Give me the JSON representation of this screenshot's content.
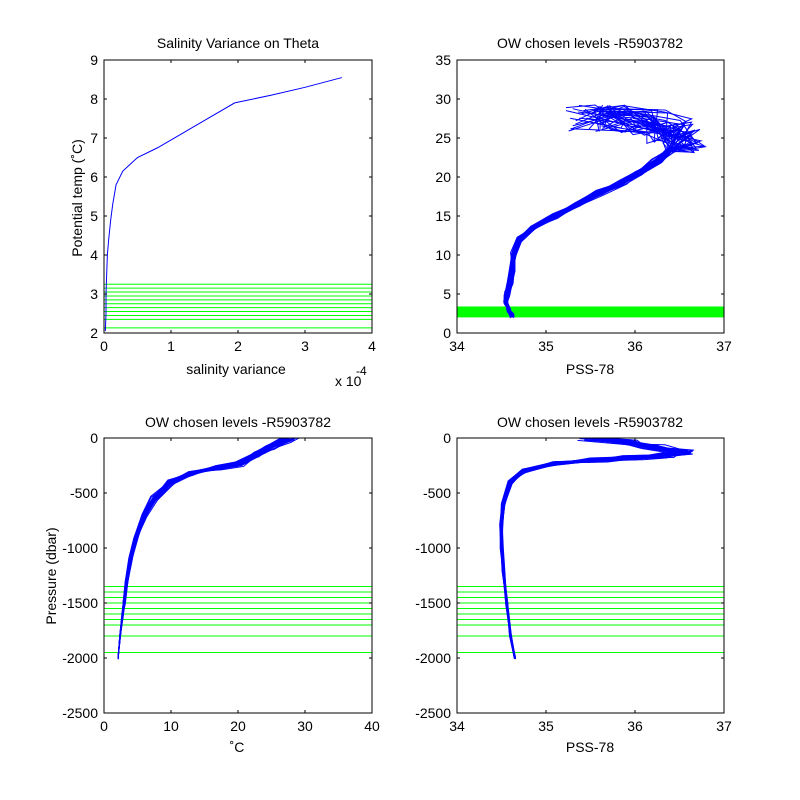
{
  "colors": {
    "background": "#ffffff",
    "axis": "#000000",
    "data_line": "#0000ff",
    "level_line": "#00ff00"
  },
  "chart_data": [
    {
      "id": "tl",
      "type": "line",
      "title": "Salinity Variance on Theta",
      "xlabel": "salinity variance",
      "ylabel": "Potential temp (˚C)",
      "xlim": [
        0,
        4
      ],
      "ylim": [
        2,
        9
      ],
      "xticks": [
        0,
        1,
        2,
        3,
        4
      ],
      "yticks": [
        2,
        3,
        4,
        5,
        6,
        7,
        8,
        9
      ],
      "x_exponent_label": "x 10",
      "x_exponent_power": "-4",
      "grid": false,
      "series": [
        {
          "points": [
            [
              0.02,
              2.05
            ],
            [
              0.03,
              2.5
            ],
            [
              0.03,
              3.0
            ],
            [
              0.04,
              3.5
            ],
            [
              0.05,
              4.0
            ],
            [
              0.07,
              4.4
            ],
            [
              0.1,
              4.9
            ],
            [
              0.13,
              5.3
            ],
            [
              0.18,
              5.8
            ],
            [
              0.28,
              6.15
            ],
            [
              0.5,
              6.5
            ],
            [
              0.8,
              6.75
            ],
            [
              1.2,
              7.15
            ],
            [
              1.5,
              7.45
            ],
            [
              1.95,
              7.9
            ],
            [
              2.5,
              8.1
            ],
            [
              3.0,
              8.3
            ],
            [
              3.55,
              8.55
            ]
          ]
        }
      ],
      "level_lines": [
        2.13,
        2.35,
        2.45,
        2.55,
        2.65,
        2.75,
        2.85,
        2.95,
        3.05,
        3.15,
        3.25
      ]
    },
    {
      "id": "tr",
      "type": "line",
      "title": "OW chosen levels -R5903782",
      "xlabel": "PSS-78",
      "ylabel": "",
      "xlim": [
        34,
        37
      ],
      "ylim": [
        0,
        35
      ],
      "xticks": [
        34,
        35,
        36,
        37
      ],
      "yticks": [
        0,
        5,
        10,
        15,
        20,
        25,
        30,
        35
      ],
      "grid": false,
      "band": [
        2.0,
        3.4
      ],
      "profile_count": 36,
      "base_profile": [
        [
          34.62,
          2.2
        ],
        [
          34.58,
          3.0
        ],
        [
          34.55,
          4.0
        ],
        [
          34.56,
          5.0
        ],
        [
          34.6,
          6.5
        ],
        [
          34.62,
          8.0
        ],
        [
          34.64,
          10.0
        ],
        [
          34.7,
          12.0
        ],
        [
          34.85,
          13.5
        ],
        [
          35.1,
          15.0
        ],
        [
          35.35,
          16.5
        ],
        [
          35.6,
          18.0
        ],
        [
          35.85,
          19.3
        ],
        [
          36.05,
          20.5
        ],
        [
          36.25,
          22.0
        ],
        [
          36.4,
          23.5
        ],
        [
          36.55,
          24.8
        ],
        [
          36.4,
          26.0
        ],
        [
          36.1,
          27.0
        ],
        [
          35.8,
          27.5
        ],
        [
          35.5,
          27.5
        ]
      ]
    },
    {
      "id": "bl",
      "type": "line",
      "title": "OW chosen levels -R5903782",
      "xlabel": "˚C",
      "ylabel": "Pressure (dbar)",
      "xlim": [
        0,
        40
      ],
      "ylim": [
        -2500,
        0
      ],
      "xticks": [
        0,
        10,
        20,
        30,
        40
      ],
      "yticks": [
        -2500,
        -2000,
        -1500,
        -1000,
        -500,
        0
      ],
      "grid": false,
      "profile_count": 30,
      "base_profile": [
        [
          2.1,
          -2000
        ],
        [
          2.4,
          -1800
        ],
        [
          2.8,
          -1600
        ],
        [
          3.0,
          -1500
        ],
        [
          3.4,
          -1300
        ],
        [
          4.0,
          -1100
        ],
        [
          4.8,
          -900
        ],
        [
          6.0,
          -700
        ],
        [
          7.5,
          -550
        ],
        [
          10.0,
          -400
        ],
        [
          13.0,
          -320
        ],
        [
          17.0,
          -270
        ],
        [
          20.0,
          -240
        ],
        [
          23.0,
          -150
        ],
        [
          25.0,
          -80
        ],
        [
          27.0,
          -20
        ],
        [
          28.0,
          0
        ]
      ],
      "level_lines": [
        -1350,
        -1400,
        -1450,
        -1500,
        -1550,
        -1600,
        -1650,
        -1700,
        -1800,
        -1950
      ]
    },
    {
      "id": "br",
      "type": "line",
      "title": "OW chosen levels -R5903782",
      "xlabel": "PSS-78",
      "ylabel": "",
      "xlim": [
        34,
        37
      ],
      "ylim": [
        -2500,
        0
      ],
      "xticks": [
        34,
        35,
        36,
        37
      ],
      "yticks": [
        -2500,
        -2000,
        -1500,
        -1000,
        -500,
        0
      ],
      "grid": false,
      "profile_count": 30,
      "base_profile": [
        [
          34.65,
          -2000
        ],
        [
          34.6,
          -1800
        ],
        [
          34.56,
          -1500
        ],
        [
          34.52,
          -1200
        ],
        [
          34.5,
          -1000
        ],
        [
          34.5,
          -800
        ],
        [
          34.52,
          -600
        ],
        [
          34.6,
          -400
        ],
        [
          34.75,
          -300
        ],
        [
          35.1,
          -230
        ],
        [
          35.6,
          -200
        ],
        [
          36.0,
          -180
        ],
        [
          36.3,
          -160
        ],
        [
          36.55,
          -130
        ],
        [
          36.2,
          -80
        ],
        [
          35.9,
          -40
        ],
        [
          35.5,
          0
        ]
      ],
      "level_lines": [
        -1350,
        -1400,
        -1450,
        -1500,
        -1550,
        -1600,
        -1650,
        -1700,
        -1800,
        -1950
      ]
    }
  ]
}
